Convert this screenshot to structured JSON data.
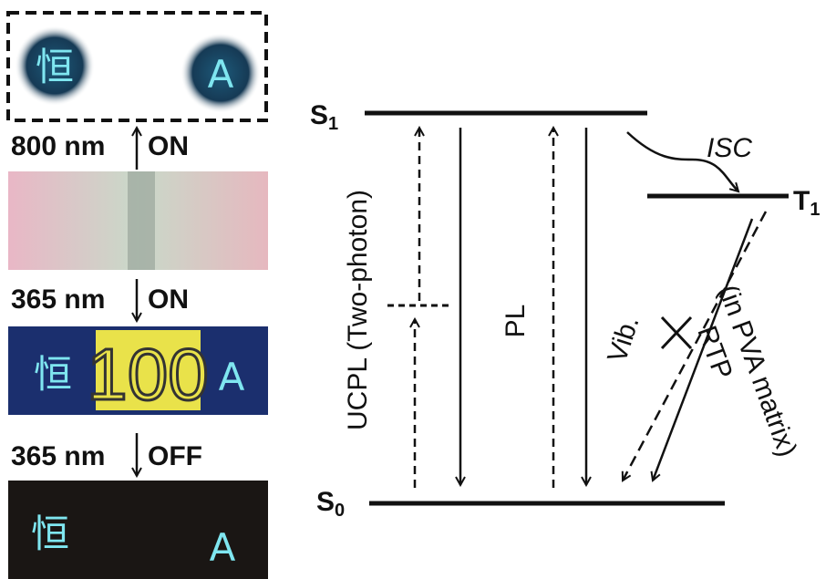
{
  "panels": {
    "top": {
      "left_char": "恒",
      "right_char": "A"
    },
    "step1": {
      "wavelength": "800 nm",
      "state": "ON"
    },
    "step2": {
      "wavelength": "365 nm",
      "state": "ON"
    },
    "middle": {
      "left_char": "恒",
      "center_text": "100",
      "right_char": "A"
    },
    "step3": {
      "wavelength": "365 nm",
      "state": "OFF"
    },
    "bottom": {
      "left_char": "恒",
      "right_char": "A"
    }
  },
  "diagram": {
    "levels": {
      "s1": {
        "symbol": "S",
        "subscript": "1"
      },
      "t1": {
        "symbol": "T",
        "subscript": "1"
      },
      "s0": {
        "symbol": "S",
        "subscript": "0"
      }
    },
    "labels": {
      "isc": "ISC",
      "ucpl": "UCPL (Two-photon)",
      "pl": "PL",
      "vib": "Vib.",
      "rtp": "RTP",
      "rtp_note": "(in PVA matrix)"
    }
  }
}
